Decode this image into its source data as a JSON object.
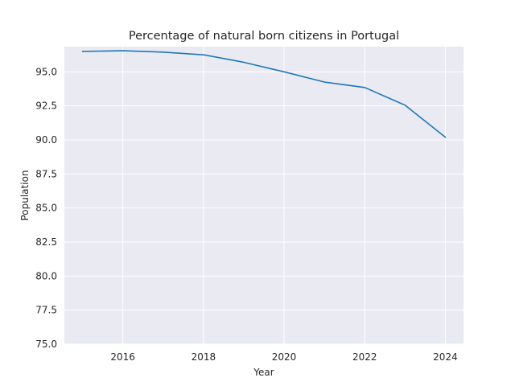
{
  "chart_data": {
    "type": "line",
    "title": "Percentage of natural born citizens in Portugal",
    "xlabel": "Year",
    "ylabel": "Population",
    "x": [
      2015,
      2016,
      2017,
      2018,
      2019,
      2020,
      2021,
      2022,
      2023,
      2024
    ],
    "series": [
      {
        "values": [
          96.5,
          96.55,
          96.45,
          96.25,
          95.7,
          95.0,
          94.25,
          93.85,
          92.55,
          90.2
        ]
      }
    ],
    "xlim": [
      2014.55,
      2024.45
    ],
    "ylim": [
      75.0,
      96.85
    ],
    "xticks": [
      2016,
      2018,
      2020,
      2022,
      2024
    ],
    "xtick_labels": [
      "2016",
      "2018",
      "2020",
      "2022",
      "2024"
    ],
    "yticks": [
      75.0,
      77.5,
      80.0,
      82.5,
      85.0,
      87.5,
      90.0,
      92.5,
      95.0
    ],
    "ytick_labels": [
      "75.0",
      "77.5",
      "80.0",
      "82.5",
      "85.0",
      "87.5",
      "90.0",
      "92.5",
      "95.0"
    ],
    "grid": true,
    "colors": {
      "line": "#1f77b4",
      "plot_background": "#eaeaf2",
      "grid": "#ffffff"
    }
  }
}
